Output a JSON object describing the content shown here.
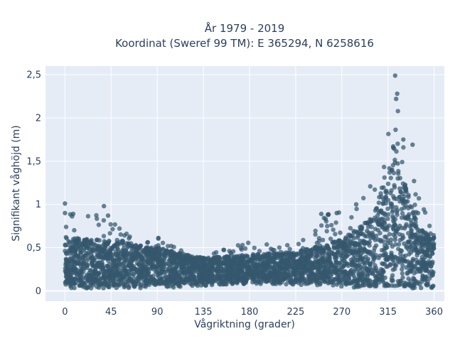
{
  "chart_data": {
    "type": "scatter",
    "title_line1": "År 1979 - 2019",
    "title_line2": "Koordinat (Sweref 99 TM): E 365294, N 6258616",
    "xlabel": "Vågriktning (grader)",
    "ylabel": "Signifikant våghöjd (m)",
    "xlim": [
      -19,
      370
    ],
    "ylim": [
      -0.12,
      2.6
    ],
    "x_ticks": [
      0,
      45,
      90,
      135,
      180,
      225,
      270,
      315,
      360
    ],
    "x_tick_labels": [
      "0",
      "45",
      "90",
      "135",
      "180",
      "225",
      "270",
      "315",
      "360"
    ],
    "y_ticks": [
      0,
      0.5,
      1,
      1.5,
      2,
      2.5
    ],
    "y_tick_labels": [
      "0",
      "0,5",
      "1",
      "1,5",
      "2",
      "2,5"
    ],
    "grid": true,
    "marker_color": "#34586e",
    "envelope": [
      {
        "x": 0,
        "y_min": 0.03,
        "y_max": 1.0
      },
      {
        "x": 10,
        "y_min": 0.03,
        "y_max": 0.88
      },
      {
        "x": 20,
        "y_min": 0.03,
        "y_max": 0.86
      },
      {
        "x": 30,
        "y_min": 0.03,
        "y_max": 0.88
      },
      {
        "x": 38,
        "y_min": 0.03,
        "y_max": 0.98
      },
      {
        "x": 45,
        "y_min": 0.03,
        "y_max": 0.8
      },
      {
        "x": 60,
        "y_min": 0.03,
        "y_max": 0.72
      },
      {
        "x": 75,
        "y_min": 0.03,
        "y_max": 0.7
      },
      {
        "x": 90,
        "y_min": 0.03,
        "y_max": 0.62
      },
      {
        "x": 100,
        "y_min": 0.04,
        "y_max": 0.55
      },
      {
        "x": 110,
        "y_min": 0.04,
        "y_max": 0.5
      },
      {
        "x": 120,
        "y_min": 0.05,
        "y_max": 0.47
      },
      {
        "x": 135,
        "y_min": 0.06,
        "y_max": 0.45
      },
      {
        "x": 150,
        "y_min": 0.07,
        "y_max": 0.5
      },
      {
        "x": 165,
        "y_min": 0.08,
        "y_max": 0.55
      },
      {
        "x": 180,
        "y_min": 0.08,
        "y_max": 0.56
      },
      {
        "x": 195,
        "y_min": 0.08,
        "y_max": 0.55
      },
      {
        "x": 210,
        "y_min": 0.08,
        "y_max": 0.52
      },
      {
        "x": 225,
        "y_min": 0.07,
        "y_max": 0.55
      },
      {
        "x": 240,
        "y_min": 0.06,
        "y_max": 0.65
      },
      {
        "x": 250,
        "y_min": 0.05,
        "y_max": 0.88
      },
      {
        "x": 265,
        "y_min": 0.05,
        "y_max": 0.9
      },
      {
        "x": 280,
        "y_min": 0.04,
        "y_max": 0.95
      },
      {
        "x": 295,
        "y_min": 0.04,
        "y_max": 1.15
      },
      {
        "x": 305,
        "y_min": 0.03,
        "y_max": 1.4
      },
      {
        "x": 312,
        "y_min": 0.03,
        "y_max": 1.7
      },
      {
        "x": 318,
        "y_min": 0.03,
        "y_max": 2.05
      },
      {
        "x": 322,
        "y_min": 0.03,
        "y_max": 2.49
      },
      {
        "x": 326,
        "y_min": 0.03,
        "y_max": 2.0
      },
      {
        "x": 332,
        "y_min": 0.03,
        "y_max": 1.65
      },
      {
        "x": 340,
        "y_min": 0.03,
        "y_max": 1.3
      },
      {
        "x": 350,
        "y_min": 0.03,
        "y_max": 1.0
      },
      {
        "x": 355,
        "y_min": 0.03,
        "y_max": 0.93
      },
      {
        "x": 360,
        "y_min": 0.03,
        "y_max": 0.85
      }
    ],
    "dense_core": [
      {
        "x": 0,
        "y_min": 0.06,
        "y_max": 0.62
      },
      {
        "x": 45,
        "y_min": 0.06,
        "y_max": 0.58
      },
      {
        "x": 90,
        "y_min": 0.07,
        "y_max": 0.5
      },
      {
        "x": 135,
        "y_min": 0.1,
        "y_max": 0.38
      },
      {
        "x": 180,
        "y_min": 0.1,
        "y_max": 0.42
      },
      {
        "x": 225,
        "y_min": 0.1,
        "y_max": 0.45
      },
      {
        "x": 270,
        "y_min": 0.07,
        "y_max": 0.6
      },
      {
        "x": 300,
        "y_min": 0.05,
        "y_max": 0.85
      },
      {
        "x": 315,
        "y_min": 0.05,
        "y_max": 1.45
      },
      {
        "x": 322,
        "y_min": 0.05,
        "y_max": 1.75
      },
      {
        "x": 330,
        "y_min": 0.05,
        "y_max": 1.3
      },
      {
        "x": 345,
        "y_min": 0.05,
        "y_max": 0.75
      },
      {
        "x": 360,
        "y_min": 0.05,
        "y_max": 0.6
      }
    ],
    "outliers": [
      {
        "x": 0,
        "y": 1.01
      },
      {
        "x": 0,
        "y": 0.9
      },
      {
        "x": 8,
        "y": 0.89
      },
      {
        "x": 38,
        "y": 0.98
      },
      {
        "x": 42,
        "y": 0.87
      },
      {
        "x": 250,
        "y": 0.89
      },
      {
        "x": 257,
        "y": 0.88
      },
      {
        "x": 265,
        "y": 0.9
      },
      {
        "x": 284,
        "y": 1.0
      },
      {
        "x": 322,
        "y": 2.49
      },
      {
        "x": 324,
        "y": 2.28
      },
      {
        "x": 323,
        "y": 2.22
      },
      {
        "x": 339,
        "y": 1.69
      },
      {
        "x": 330,
        "y": 1.75
      }
    ]
  }
}
